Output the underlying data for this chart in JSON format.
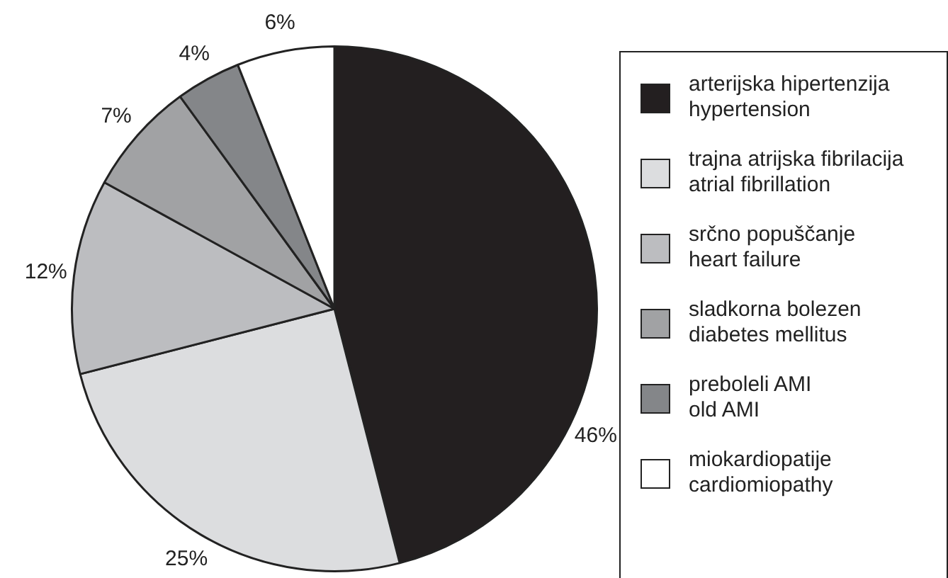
{
  "chart_data": {
    "type": "pie",
    "categories": [
      "arterijska hipertenzija\nhypertension",
      "trajna atrijska fibrilacija\natrial fibrillation",
      "srčno popuščanje\nheart failure",
      "sladkorna bolezen\ndiabetes mellitus",
      "preboleli AMI\nold AMI",
      "miokardiopatije\ncardiomiopathy"
    ],
    "values": [
      46,
      25,
      12,
      7,
      4,
      6
    ],
    "value_labels": [
      "46%",
      "25%",
      "12%",
      "7%",
      "4%",
      "6%"
    ],
    "colors": [
      "#231f20",
      "#dcdddf",
      "#bcbdc0",
      "#a1a2a4",
      "#848689",
      "#ffffff"
    ],
    "legend": "right"
  }
}
